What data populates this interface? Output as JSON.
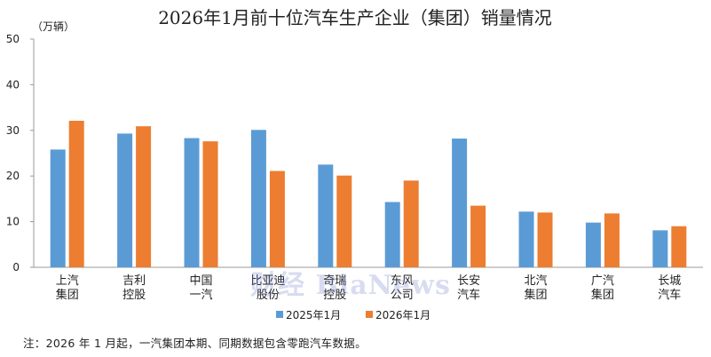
{
  "chart_data": {
    "type": "bar",
    "title": "2026年1月前十位汽车生产企业（集团）销量情况",
    "unit": "（万辆）",
    "ylim": [
      0,
      50
    ],
    "yticks": [
      0,
      10,
      20,
      30,
      40,
      50
    ],
    "grid": false,
    "legend_position": "bottom",
    "categories": [
      [
        "上汽",
        "集团"
      ],
      [
        "吉利",
        "控股"
      ],
      [
        "中国",
        "一汽"
      ],
      [
        "比亚迪",
        "股份"
      ],
      [
        "奇瑞",
        "控股"
      ],
      [
        "东风",
        "公司"
      ],
      [
        "长安",
        "汽车"
      ],
      [
        "北汽",
        "集团"
      ],
      [
        "广汽",
        "集团"
      ],
      [
        "长城",
        "汽车"
      ]
    ],
    "series": [
      {
        "name": "2025年1月",
        "color": "#5b9bd5",
        "values": [
          25.8,
          29.3,
          28.3,
          30.1,
          22.5,
          14.3,
          28.2,
          12.2,
          9.8,
          8.1
        ]
      },
      {
        "name": "2026年1月",
        "color": "#ed7d31",
        "values": [
          32.1,
          30.9,
          27.6,
          21.1,
          20.1,
          19.0,
          13.5,
          12.0,
          11.8,
          9.0
        ]
      }
    ]
  },
  "footnote": "注：2026 年 1 月起，一汽集团本期、同期数据包含零跑汽车数据。",
  "watermark": "财经 BiaNews"
}
